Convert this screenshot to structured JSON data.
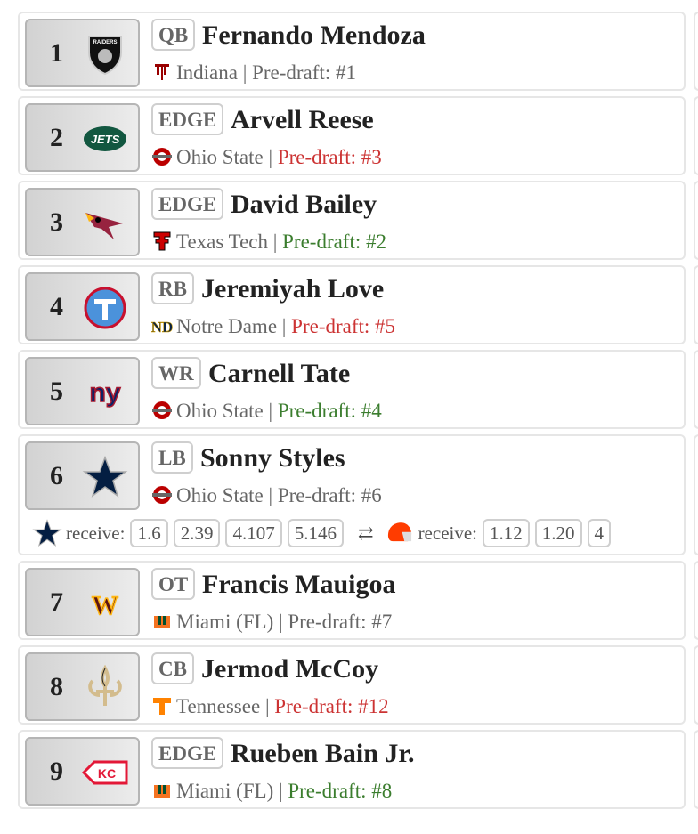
{
  "colors": {
    "reach": "#cc3333",
    "value": "#3b7d2e",
    "neutral": "#666666"
  },
  "picks": [
    {
      "pick": "1",
      "team_logo": "raiders-logo",
      "position": "QB",
      "name": "Fernando Mendoza",
      "school_logo": "indiana-logo",
      "school": "Indiana",
      "separator": "|",
      "predraft": "Pre-draft: #1",
      "predraft_status": "neutral"
    },
    {
      "pick": "2",
      "team_logo": "jets-logo",
      "position": "EDGE",
      "name": "Arvell Reese",
      "school_logo": "ohio-state-logo",
      "school": "Ohio State",
      "separator": "|",
      "predraft": "Pre-draft: #3",
      "predraft_status": "reach"
    },
    {
      "pick": "3",
      "team_logo": "cardinals-logo",
      "position": "EDGE",
      "name": "David Bailey",
      "school_logo": "texas-tech-logo",
      "school": "Texas Tech",
      "separator": "|",
      "predraft": "Pre-draft: #2",
      "predraft_status": "value"
    },
    {
      "pick": "4",
      "team_logo": "titans-logo",
      "position": "RB",
      "name": "Jeremiyah Love",
      "school_logo": "notre-dame-logo",
      "school": "Notre Dame",
      "separator": "|",
      "predraft": "Pre-draft: #5",
      "predraft_status": "reach"
    },
    {
      "pick": "5",
      "team_logo": "giants-logo",
      "position": "WR",
      "name": "Carnell Tate",
      "school_logo": "ohio-state-logo",
      "school": "Ohio State",
      "separator": "|",
      "predraft": "Pre-draft: #4",
      "predraft_status": "value"
    },
    {
      "pick": "6",
      "team_logo": "cowboys-logo",
      "position": "LB",
      "name": "Sonny Styles",
      "school_logo": "ohio-state-logo",
      "school": "Ohio State",
      "separator": "|",
      "predraft": "Pre-draft: #6",
      "predraft_status": "neutral",
      "trade": {
        "team_a_logo": "cowboys-logo",
        "team_a_label": "receive:",
        "team_a_picks": [
          "1.6",
          "2.39",
          "4.107",
          "5.146"
        ],
        "swap_icon": "⇄",
        "team_b_logo": "browns-logo",
        "team_b_label": "receive:",
        "team_b_picks": [
          "1.12",
          "1.20",
          "4"
        ]
      }
    },
    {
      "pick": "7",
      "team_logo": "commanders-logo",
      "position": "OT",
      "name": "Francis Mauigoa",
      "school_logo": "miami-logo",
      "school": "Miami (FL)",
      "separator": "|",
      "predraft": "Pre-draft: #7",
      "predraft_status": "neutral"
    },
    {
      "pick": "8",
      "team_logo": "saints-logo",
      "position": "CB",
      "name": "Jermod McCoy",
      "school_logo": "tennessee-logo",
      "school": "Tennessee",
      "separator": "|",
      "predraft": "Pre-draft: #12",
      "predraft_status": "reach"
    },
    {
      "pick": "9",
      "team_logo": "chiefs-logo",
      "position": "EDGE",
      "name": "Rueben Bain Jr.",
      "school_logo": "miami-logo",
      "school": "Miami (FL)",
      "separator": "|",
      "predraft": "Pre-draft: #8",
      "predraft_status": "value"
    }
  ]
}
